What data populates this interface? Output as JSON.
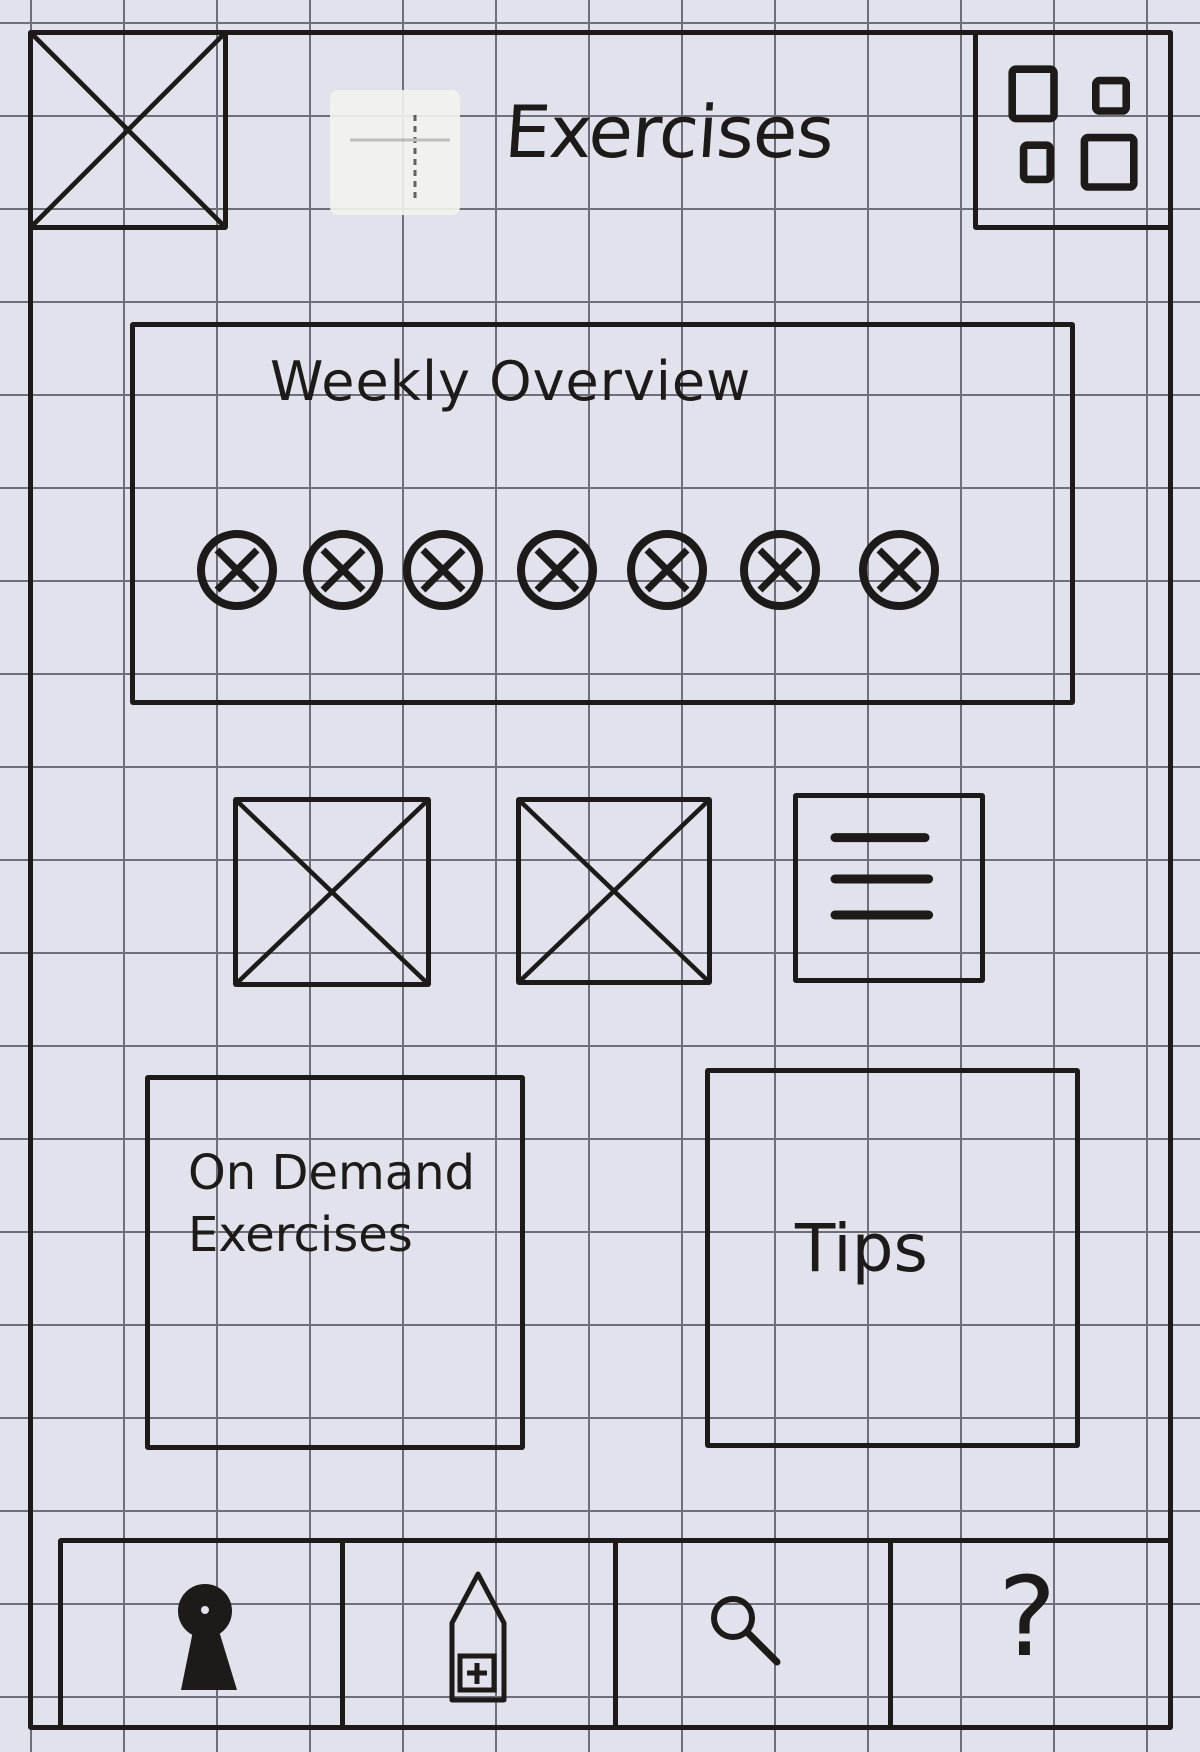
{
  "header": {
    "title": "Exercises"
  },
  "weekly_overview": {
    "title": "Weekly Overview",
    "days": 7
  },
  "cards": {
    "on_demand": {
      "line1": "On Demand",
      "line2": "Exercises"
    },
    "tips": {
      "label": "Tips"
    }
  },
  "bottom_nav": {
    "help_glyph": "?",
    "items": [
      {
        "icon": "keyhole-icon"
      },
      {
        "icon": "house-plus-icon"
      },
      {
        "icon": "search-icon"
      },
      {
        "icon": "help-icon"
      }
    ]
  },
  "colors": {
    "ink": "#1e1a1a",
    "paper": "#e2e2ec",
    "grid": "#6f6f7a"
  }
}
